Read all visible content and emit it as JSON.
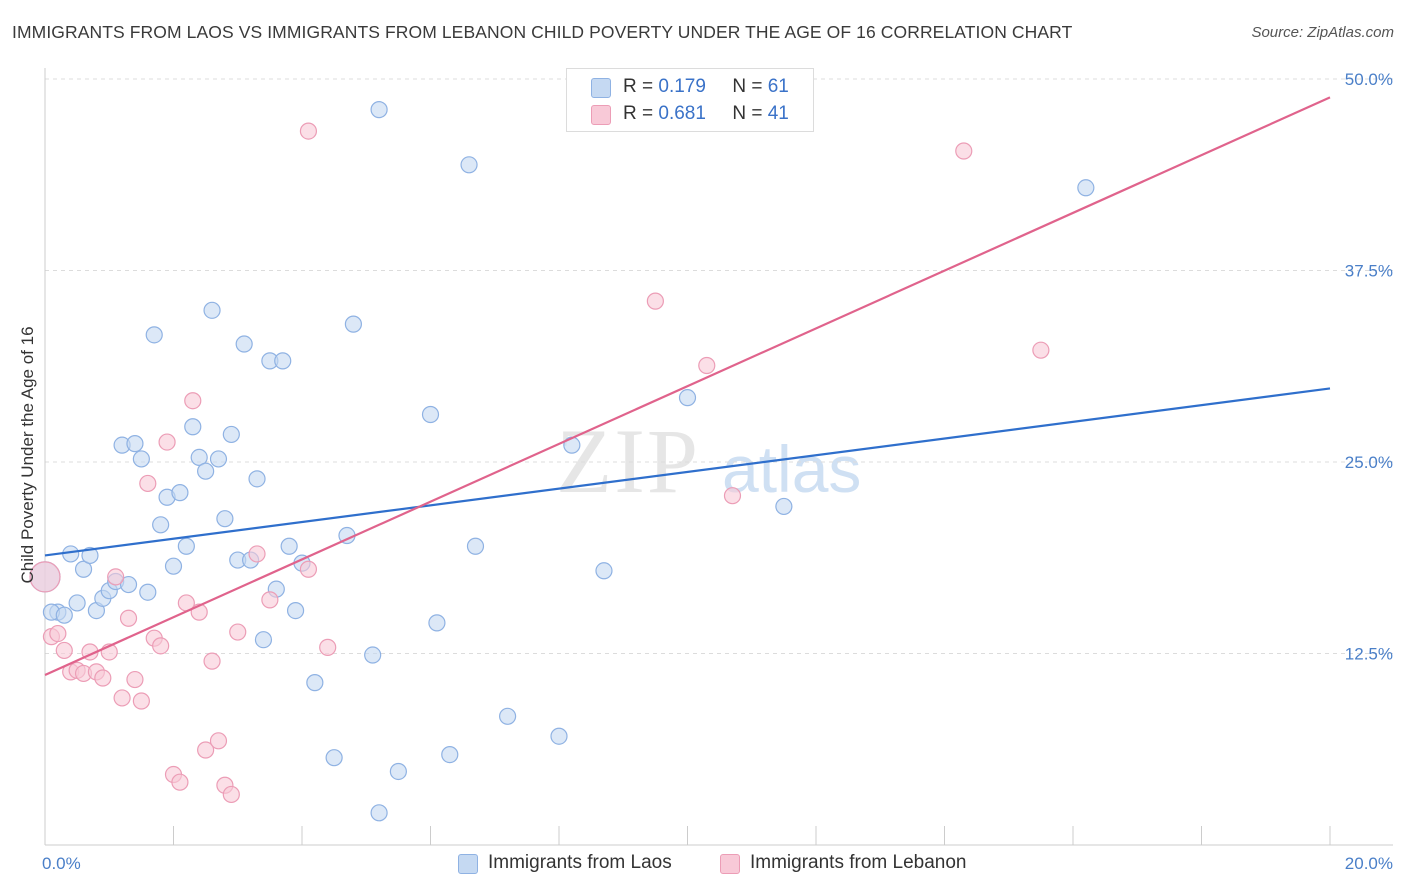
{
  "header": {
    "title": "IMMIGRANTS FROM LAOS VS IMMIGRANTS FROM LEBANON CHILD POVERTY UNDER THE AGE OF 16 CORRELATION CHART",
    "source": "Source: ZipAtlas.com"
  },
  "watermark": {
    "zip": "ZIP",
    "atlas": "atlas"
  },
  "legend": {
    "r_label": "R =",
    "n_label": "N =",
    "laos": {
      "r": "0.179",
      "n": "61"
    },
    "lebanon": {
      "r": "0.681",
      "n": "41"
    }
  },
  "colors": {
    "laos_fill": "#c5d9f2",
    "laos_stroke": "#8fb2e3",
    "laos_line": "#2f6fcc",
    "lebanon_fill": "#f8c9d7",
    "lebanon_stroke": "#ec9db6",
    "lebanon_line": "#e0638c"
  },
  "chart_data": {
    "type": "scatter",
    "xlabel": "",
    "ylabel": "Child Poverty Under the Age of 16",
    "xlim": [
      0,
      20
    ],
    "ylim": [
      0,
      50
    ],
    "x_tick_labels": [
      "0.0%",
      "20.0%"
    ],
    "y_ticks": [
      12.5,
      25.0,
      37.5,
      50.0
    ],
    "y_tick_labels": [
      "12.5%",
      "25.0%",
      "37.5%",
      "50.0%"
    ],
    "grid": "horizontal dashed",
    "series": [
      {
        "name": "Immigrants from Laos",
        "trend": {
          "x": [
            0,
            20
          ],
          "y": [
            18.9,
            29.8
          ]
        },
        "points": [
          [
            0.0,
            17.5
          ],
          [
            0.2,
            15.2
          ],
          [
            0.4,
            19.0
          ],
          [
            0.5,
            15.8
          ],
          [
            0.6,
            18.0
          ],
          [
            0.7,
            18.9
          ],
          [
            0.8,
            15.3
          ],
          [
            0.9,
            16.1
          ],
          [
            1.0,
            16.6
          ],
          [
            1.1,
            17.2
          ],
          [
            1.2,
            26.1
          ],
          [
            1.3,
            17.0
          ],
          [
            1.4,
            26.2
          ],
          [
            1.5,
            25.2
          ],
          [
            1.6,
            16.5
          ],
          [
            1.7,
            33.3
          ],
          [
            1.8,
            20.9
          ],
          [
            1.9,
            22.7
          ],
          [
            2.0,
            18.2
          ],
          [
            2.1,
            23.0
          ],
          [
            2.2,
            19.5
          ],
          [
            2.3,
            27.3
          ],
          [
            2.4,
            25.3
          ],
          [
            2.5,
            24.4
          ],
          [
            2.6,
            34.9
          ],
          [
            2.7,
            25.2
          ],
          [
            2.8,
            21.3
          ],
          [
            2.9,
            26.8
          ],
          [
            3.0,
            18.6
          ],
          [
            3.1,
            32.7
          ],
          [
            3.2,
            18.6
          ],
          [
            3.3,
            23.9
          ],
          [
            3.4,
            13.4
          ],
          [
            3.5,
            31.6
          ],
          [
            3.6,
            16.7
          ],
          [
            3.7,
            31.6
          ],
          [
            3.8,
            19.5
          ],
          [
            3.9,
            15.3
          ],
          [
            4.0,
            18.4
          ],
          [
            4.2,
            10.6
          ],
          [
            4.5,
            5.7
          ],
          [
            4.7,
            20.2
          ],
          [
            4.8,
            34.0
          ],
          [
            5.1,
            12.4
          ],
          [
            5.2,
            2.1
          ],
          [
            5.2,
            48.0
          ],
          [
            5.5,
            4.8
          ],
          [
            6.0,
            28.1
          ],
          [
            6.1,
            14.5
          ],
          [
            6.3,
            5.9
          ],
          [
            6.6,
            44.4
          ],
          [
            6.7,
            19.5
          ],
          [
            7.2,
            8.4
          ],
          [
            8.0,
            7.1
          ],
          [
            8.2,
            26.1
          ],
          [
            8.7,
            17.9
          ],
          [
            10.0,
            29.2
          ],
          [
            11.5,
            22.1
          ],
          [
            16.2,
            42.9
          ],
          [
            0.1,
            15.2
          ],
          [
            0.3,
            15.0
          ]
        ]
      },
      {
        "name": "Immigrants from Lebanon",
        "trend": {
          "x": [
            0,
            20
          ],
          "y": [
            11.1,
            48.8
          ]
        },
        "points": [
          [
            0.0,
            17.5
          ],
          [
            0.1,
            13.6
          ],
          [
            0.2,
            13.8
          ],
          [
            0.3,
            12.7
          ],
          [
            0.4,
            11.3
          ],
          [
            0.5,
            11.4
          ],
          [
            0.6,
            11.2
          ],
          [
            0.7,
            12.6
          ],
          [
            0.8,
            11.3
          ],
          [
            0.9,
            10.9
          ],
          [
            1.0,
            12.6
          ],
          [
            1.1,
            17.5
          ],
          [
            1.2,
            9.6
          ],
          [
            1.3,
            14.8
          ],
          [
            1.4,
            10.8
          ],
          [
            1.5,
            9.4
          ],
          [
            1.6,
            23.6
          ],
          [
            1.7,
            13.5
          ],
          [
            1.8,
            13.0
          ],
          [
            1.9,
            26.3
          ],
          [
            2.0,
            4.6
          ],
          [
            2.1,
            4.1
          ],
          [
            2.2,
            15.8
          ],
          [
            2.3,
            29.0
          ],
          [
            2.4,
            15.2
          ],
          [
            2.5,
            6.2
          ],
          [
            2.6,
            12.0
          ],
          [
            2.7,
            6.8
          ],
          [
            2.8,
            3.9
          ],
          [
            2.9,
            3.3
          ],
          [
            3.0,
            13.9
          ],
          [
            3.3,
            19.0
          ],
          [
            3.5,
            16.0
          ],
          [
            4.1,
            18.0
          ],
          [
            4.1,
            46.6
          ],
          [
            4.4,
            12.9
          ],
          [
            9.5,
            35.5
          ],
          [
            10.3,
            31.3
          ],
          [
            10.7,
            22.8
          ],
          [
            14.3,
            45.3
          ],
          [
            15.5,
            32.3
          ]
        ]
      }
    ]
  },
  "bottom_legend": {
    "laos": "Immigrants from Laos",
    "lebanon": "Immigrants from Lebanon"
  }
}
